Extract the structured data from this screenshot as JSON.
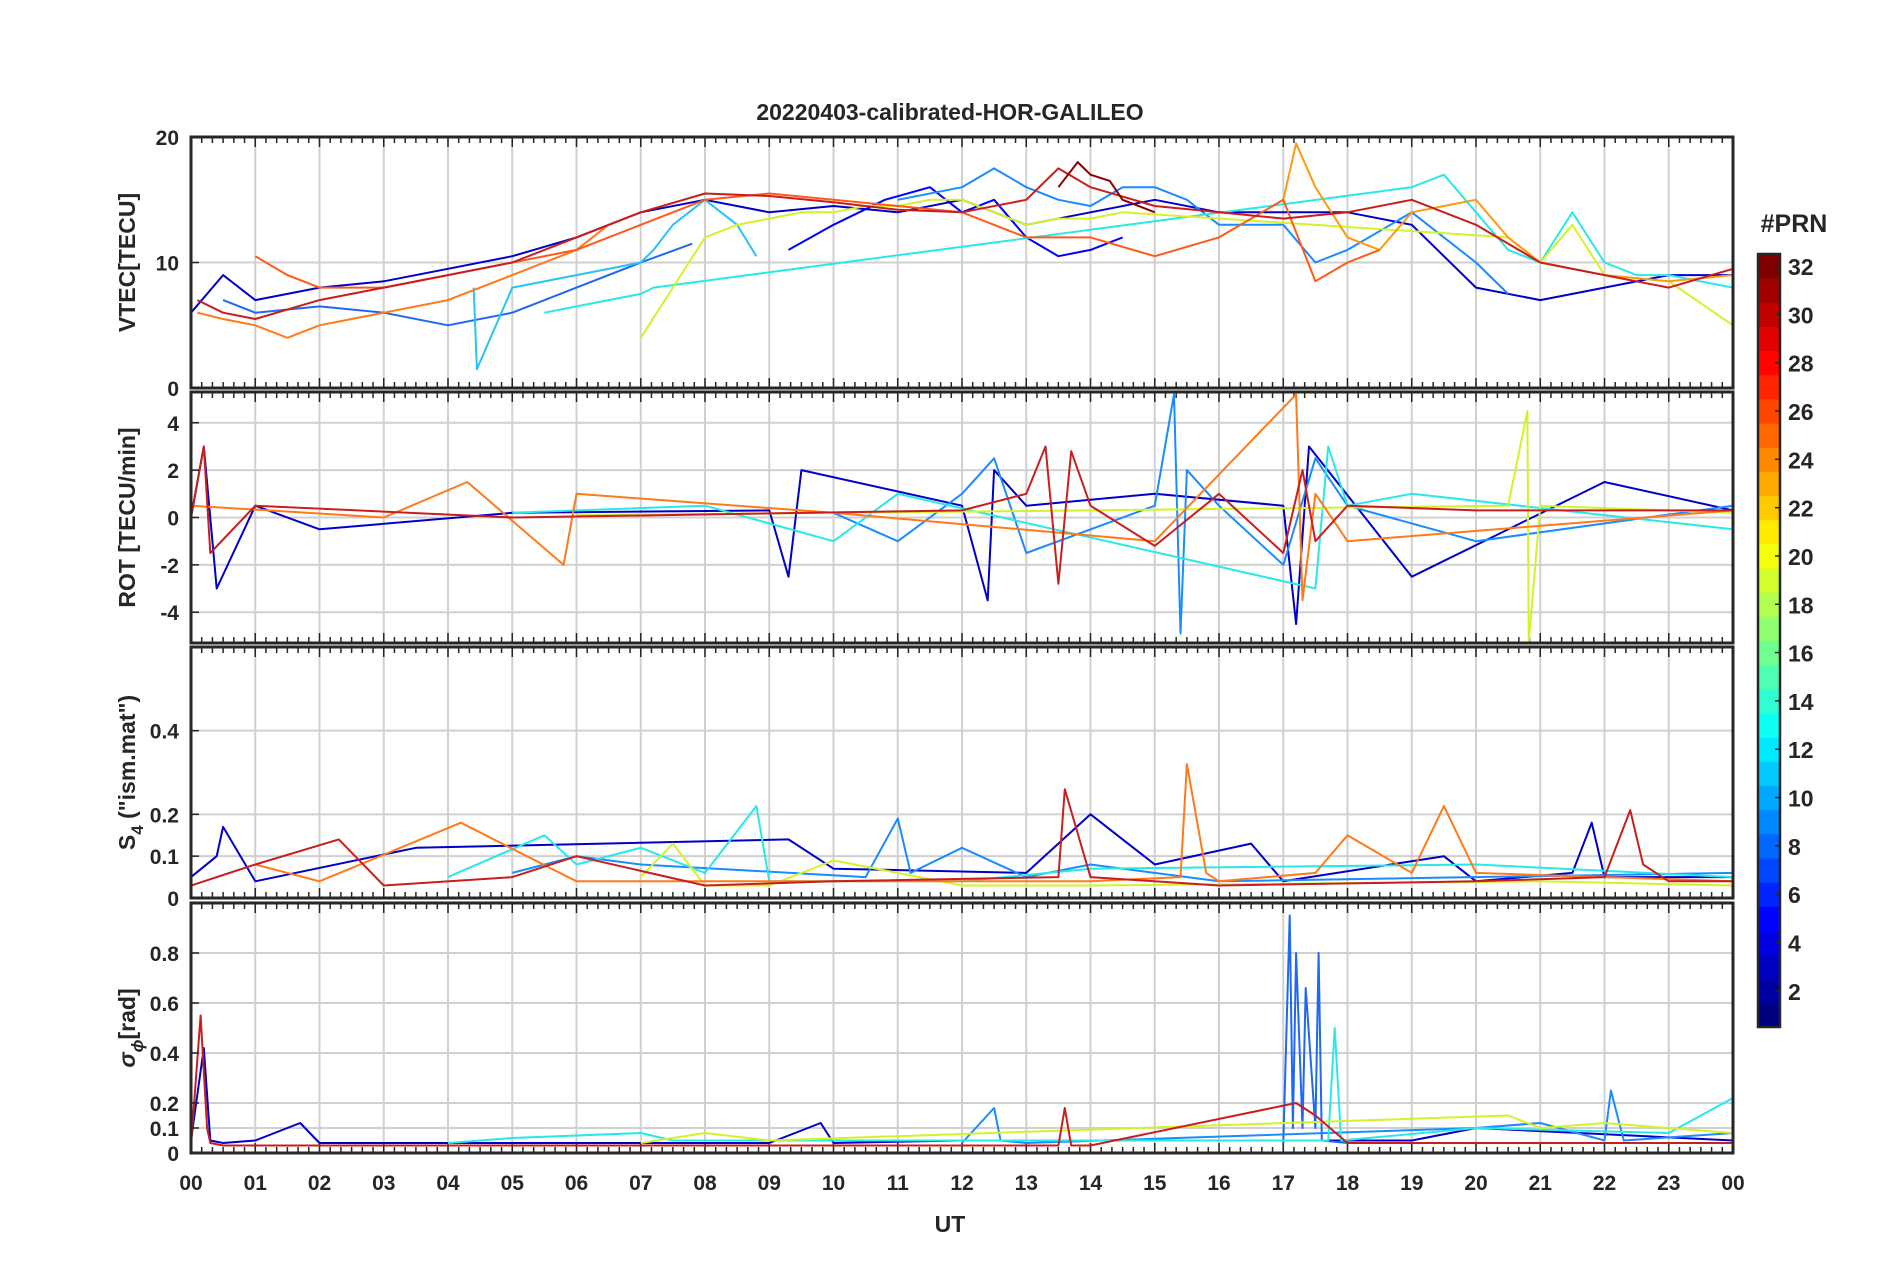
{
  "figure": {
    "title": "20220403-calibrated-HOR-GALILEO",
    "x_label": "UT"
  },
  "colorbar": {
    "title": "#PRN",
    "min": 1,
    "max": 32,
    "ticks": [
      2,
      4,
      6,
      8,
      10,
      12,
      14,
      16,
      18,
      20,
      22,
      24,
      26,
      28,
      30,
      32
    ],
    "colormap": "jet"
  },
  "chart_data": [
    {
      "type": "line",
      "panel": "vtec",
      "ylabel": "VTEC[TECU]",
      "ylim": [
        0,
        20
      ],
      "yticks": [
        0,
        10,
        20
      ],
      "x_unit": "UT hours",
      "xlim": [
        0,
        24
      ],
      "grid": true,
      "series": [
        {
          "prn": 2,
          "color": "#0000c8",
          "x": [
            0,
            0.5,
            1,
            2,
            3,
            4,
            5,
            6,
            7,
            8,
            9,
            10,
            11,
            12,
            13,
            14,
            15,
            16,
            17,
            18,
            19,
            20,
            21,
            22,
            23,
            24
          ],
          "values": [
            6,
            9,
            7,
            8,
            8.5,
            9.5,
            10.5,
            12,
            14,
            15,
            14,
            14.5,
            14,
            15,
            13,
            14,
            15,
            14,
            14,
            14,
            13,
            8,
            7,
            8,
            9,
            9
          ]
        },
        {
          "prn": 4,
          "color": "#0000ff",
          "x": [
            9.3,
            10,
            10.8,
            11.5,
            12,
            12.5,
            13,
            13.5,
            14,
            14.5
          ],
          "values": [
            11,
            13,
            15,
            16,
            14,
            15,
            12,
            10.5,
            11,
            12
          ]
        },
        {
          "prn": 7,
          "color": "#1f68f5",
          "x": [
            0.5,
            1,
            2,
            3,
            4,
            5,
            6,
            7,
            7.8
          ],
          "values": [
            7,
            6,
            6.5,
            6,
            5,
            6,
            8,
            10,
            11.5
          ]
        },
        {
          "prn": 9,
          "color": "#1a8cff",
          "x": [
            11,
            12,
            12.5,
            13,
            13.5,
            14,
            14.5,
            15,
            15.5,
            16,
            17,
            17.5,
            18,
            19,
            20,
            20.5
          ],
          "values": [
            15,
            16,
            17.5,
            16,
            15,
            14.5,
            16,
            16,
            15,
            13,
            13,
            10,
            11,
            14,
            10,
            7.5
          ]
        },
        {
          "prn": 11,
          "color": "#27c4f5",
          "x": [
            4.4,
            4.45,
            5,
            6,
            7,
            7.2,
            7.5,
            8,
            8.5,
            8.8
          ],
          "values": [
            8,
            1.5,
            8,
            9,
            10,
            11,
            13,
            15,
            13,
            10.5
          ]
        },
        {
          "prn": 13,
          "color": "#29e8e8",
          "x": [
            5.5,
            6,
            6.5,
            7,
            7.2,
            19,
            19.5,
            20,
            20.5,
            21,
            21.5,
            22,
            22.5,
            23,
            24
          ],
          "values": [
            6,
            6.5,
            7,
            7.5,
            8,
            16,
            17,
            14,
            11,
            10,
            14,
            10,
            9,
            9,
            8
          ]
        },
        {
          "prn": 19,
          "color": "#d4f22a",
          "x": [
            7,
            7.5,
            8,
            8.5,
            9,
            9.5,
            10,
            10.5,
            11,
            11.5,
            12,
            12.5,
            13,
            13.5,
            14,
            14.5,
            20.5,
            21,
            21.5,
            22,
            23,
            24
          ],
          "values": [
            4,
            8,
            12,
            13,
            13.5,
            14,
            14,
            14.5,
            14.5,
            15,
            15,
            14,
            13,
            13.5,
            13.5,
            14,
            12,
            10,
            13,
            9,
            8.5,
            5
          ]
        },
        {
          "prn": 22,
          "color": "#ff9912",
          "x": [
            17,
            17.2,
            17.5,
            18,
            18.5,
            19,
            19.5,
            20,
            20.5,
            21,
            22,
            23,
            24
          ],
          "values": [
            15,
            19.5,
            16,
            12,
            11,
            14,
            14.5,
            15,
            12,
            10,
            9,
            8.5,
            9
          ]
        },
        {
          "prn": 24,
          "color": "#ff7a1a",
          "x": [
            0.1,
            0.5,
            1,
            1.5,
            2,
            3,
            4,
            5,
            6,
            6.5,
            7
          ],
          "values": [
            6,
            5.5,
            5,
            4,
            5,
            6,
            7,
            9,
            11,
            13,
            14
          ]
        },
        {
          "prn": 26,
          "color": "#ff5a1a",
          "x": [
            1,
            1.5,
            2,
            3,
            4,
            5,
            6,
            7,
            8,
            9,
            10,
            11,
            12,
            13,
            14,
            15,
            16,
            17,
            17.5,
            18,
            18.5
          ],
          "values": [
            10.5,
            9,
            8,
            8,
            9,
            10,
            11,
            13,
            15,
            15.5,
            15,
            14.5,
            14,
            12,
            12,
            10.5,
            12,
            15,
            8.5,
            10,
            11
          ]
        },
        {
          "prn": 30,
          "color": "#c81e1e",
          "x": [
            0.1,
            0.5,
            1,
            2,
            3,
            4,
            5,
            6,
            7,
            8,
            9,
            10,
            11,
            12,
            13,
            13.5,
            14,
            15,
            16,
            17,
            18,
            19,
            20,
            21,
            22,
            23,
            24
          ],
          "values": [
            7,
            6,
            5.5,
            7,
            8,
            9,
            10,
            12,
            14,
            15.5,
            15.3,
            14.8,
            14.2,
            14,
            15,
            17.5,
            16,
            14.5,
            14,
            13.5,
            14,
            15,
            13,
            10,
            9,
            8,
            9.5
          ]
        },
        {
          "prn": 32,
          "color": "#8b0000",
          "x": [
            13.5,
            13.8,
            14,
            14.3,
            14.5,
            15
          ],
          "values": [
            16,
            18,
            17,
            16.5,
            15,
            14
          ]
        }
      ]
    },
    {
      "type": "line",
      "panel": "rot",
      "ylabel": "ROT [TECU/min]",
      "ylim": [
        -5.3,
        5.3
      ],
      "yticks": [
        -4,
        -2,
        0,
        2,
        4
      ],
      "x_unit": "UT hours",
      "xlim": [
        0,
        24
      ],
      "grid": true,
      "series": [
        {
          "prn": 2,
          "color": "#0000c8",
          "x": [
            0,
            0.2,
            0.4,
            1,
            2,
            5,
            9,
            9.3,
            9.5,
            12,
            12.4,
            12.5,
            13,
            15,
            17,
            17.2,
            17.4,
            19,
            22,
            24
          ],
          "values": [
            0,
            3,
            -3,
            0.5,
            -0.5,
            0.2,
            0.3,
            -2.5,
            2,
            0.5,
            -3.5,
            2,
            0.5,
            1,
            0.5,
            -4.5,
            3,
            -2.5,
            1.5,
            0.3
          ]
        },
        {
          "prn": 9,
          "color": "#1a8cff",
          "x": [
            10,
            11,
            12,
            12.5,
            13,
            15,
            15.3,
            15.4,
            15.5,
            16,
            17,
            17.5,
            18,
            20,
            24
          ],
          "values": [
            0.2,
            -1,
            1,
            2.5,
            -1.5,
            0.5,
            5.2,
            -4.9,
            2,
            0.5,
            -2,
            2.5,
            0.5,
            -1,
            0.5
          ]
        },
        {
          "prn": 13,
          "color": "#29e8e8",
          "x": [
            5,
            8,
            10,
            11,
            17.5,
            17.7,
            18,
            19,
            24
          ],
          "values": [
            0.2,
            0.5,
            -1,
            1,
            -3,
            3,
            0.5,
            1,
            -0.5
          ]
        },
        {
          "prn": 19,
          "color": "#d4f22a",
          "x": [
            6,
            10,
            14,
            20.5,
            20.8,
            20.82,
            21,
            24
          ],
          "values": [
            0.1,
            0.2,
            0.3,
            0.5,
            4.5,
            -5.3,
            0.5,
            0.2
          ]
        },
        {
          "prn": 24,
          "color": "#ff7a1a",
          "x": [
            0,
            3,
            4.3,
            5.8,
            6,
            10,
            15,
            17.2,
            17.3,
            17.5,
            18,
            24
          ],
          "values": [
            0.5,
            0,
            1.5,
            -2,
            1,
            0.2,
            -1,
            5.2,
            -3.5,
            1,
            -1,
            0.3
          ]
        },
        {
          "prn": 30,
          "color": "#c81e1e",
          "x": [
            0,
            0.2,
            0.3,
            1,
            5,
            12,
            13,
            13.3,
            13.5,
            13.7,
            14,
            15,
            16,
            17,
            17.3,
            17.5,
            18,
            20,
            24
          ],
          "values": [
            0,
            3,
            -1.5,
            0.5,
            0,
            0.3,
            1,
            3,
            -2.8,
            2.8,
            0.5,
            -1.2,
            1,
            -1.5,
            2,
            -1,
            0.5,
            0.3,
            0.3
          ]
        }
      ]
    },
    {
      "type": "line",
      "panel": "s4",
      "ylabel": "S",
      "ylabel_subscript": "4",
      "ylabel_suffix": " (\"ism.mat\")",
      "ylim": [
        0,
        0.6
      ],
      "yticks": [
        0,
        0.1,
        0.2,
        0.4
      ],
      "x_unit": "UT hours",
      "xlim": [
        0,
        24
      ],
      "grid": true,
      "series": [
        {
          "prn": 2,
          "color": "#0000c8",
          "x": [
            0,
            0.4,
            0.5,
            1,
            3.5,
            9.3,
            10,
            13,
            14,
            15,
            16.5,
            17,
            19.5,
            20,
            21.5,
            21.8,
            22,
            24
          ],
          "values": [
            0.05,
            0.1,
            0.17,
            0.04,
            0.12,
            0.14,
            0.07,
            0.06,
            0.2,
            0.08,
            0.13,
            0.04,
            0.1,
            0.04,
            0.06,
            0.18,
            0.05,
            0.05
          ]
        },
        {
          "prn": 9,
          "color": "#1a8cff",
          "x": [
            5,
            6,
            7,
            10.5,
            11,
            11.2,
            12,
            13,
            14,
            15,
            16,
            24
          ],
          "values": [
            0.06,
            0.1,
            0.08,
            0.05,
            0.19,
            0.06,
            0.12,
            0.05,
            0.08,
            0.06,
            0.04,
            0.06
          ]
        },
        {
          "prn": 13,
          "color": "#29e8e8",
          "x": [
            4,
            5.5,
            6,
            7,
            8,
            8.8,
            9,
            12,
            14,
            20,
            24
          ],
          "values": [
            0.05,
            0.15,
            0.08,
            0.12,
            0.06,
            0.22,
            0.04,
            0.04,
            0.07,
            0.08,
            0.05
          ]
        },
        {
          "prn": 19,
          "color": "#d4f22a",
          "x": [
            7,
            7.5,
            8,
            9,
            10,
            12,
            14,
            21,
            24
          ],
          "values": [
            0.05,
            0.13,
            0.03,
            0.03,
            0.09,
            0.03,
            0.03,
            0.04,
            0.03
          ]
        },
        {
          "prn": 24,
          "color": "#ff7a1a",
          "x": [
            1,
            2,
            4.2,
            6,
            14,
            15.4,
            15.5,
            15.8,
            16,
            17.5,
            18,
            19,
            19.5,
            20,
            24
          ],
          "values": [
            0.08,
            0.04,
            0.18,
            0.04,
            0.04,
            0.05,
            0.32,
            0.06,
            0.04,
            0.06,
            0.15,
            0.06,
            0.22,
            0.06,
            0.04
          ]
        },
        {
          "prn": 30,
          "color": "#c81e1e",
          "x": [
            0,
            1,
            2.3,
            3,
            5,
            6,
            8,
            10,
            13.5,
            13.6,
            14,
            16,
            20,
            22,
            22.4,
            22.6,
            23,
            24
          ],
          "values": [
            0.03,
            0.08,
            0.14,
            0.03,
            0.05,
            0.1,
            0.03,
            0.04,
            0.05,
            0.26,
            0.05,
            0.03,
            0.04,
            0.05,
            0.21,
            0.08,
            0.04,
            0.04
          ]
        }
      ]
    },
    {
      "type": "line",
      "panel": "sigma_phi",
      "ylabel": "σ",
      "ylabel_subscript": "ϕ",
      "ylabel_suffix": "[rad]",
      "ylim": [
        0,
        1.0
      ],
      "yticks": [
        0,
        0.1,
        0.2,
        0.4,
        0.6,
        0.8
      ],
      "x_unit": "UT hours",
      "xlim": [
        0,
        24
      ],
      "grid": true,
      "series": [
        {
          "prn": 2,
          "color": "#0000c8",
          "x": [
            0,
            0.2,
            0.3,
            0.5,
            1,
            1.7,
            2,
            9,
            9.8,
            10,
            12,
            19,
            20,
            24
          ],
          "values": [
            0.05,
            0.42,
            0.05,
            0.04,
            0.05,
            0.12,
            0.04,
            0.04,
            0.12,
            0.04,
            0.05,
            0.05,
            0.1,
            0.05
          ]
        },
        {
          "prn": 7,
          "color": "#1f68f5",
          "x": [
            17,
            17.1,
            17.15,
            17.2,
            17.3,
            17.35,
            17.5,
            17.55,
            17.6,
            18,
            24
          ],
          "values": [
            0.04,
            0.95,
            0.1,
            0.8,
            0.1,
            0.66,
            0.1,
            0.8,
            0.05,
            0.04,
            0.04
          ]
        },
        {
          "prn": 9,
          "color": "#1a8cff",
          "x": [
            12,
            12.5,
            12.6,
            13,
            20,
            21,
            22,
            22.1,
            22.3,
            24
          ],
          "values": [
            0.04,
            0.18,
            0.05,
            0.04,
            0.1,
            0.12,
            0.05,
            0.25,
            0.05,
            0.08
          ]
        },
        {
          "prn": 13,
          "color": "#29e8e8",
          "x": [
            4,
            5,
            7,
            7.5,
            17.7,
            17.8,
            17.9,
            20,
            23,
            24
          ],
          "values": [
            0.04,
            0.06,
            0.08,
            0.05,
            0.05,
            0.5,
            0.05,
            0.1,
            0.08,
            0.22
          ]
        },
        {
          "prn": 19,
          "color": "#d4f22a",
          "x": [
            7,
            8,
            9,
            20.5,
            21,
            22,
            24
          ],
          "values": [
            0.04,
            0.08,
            0.05,
            0.15,
            0.1,
            0.12,
            0.08
          ]
        },
        {
          "prn": 30,
          "color": "#c81e1e",
          "x": [
            0,
            0.15,
            0.25,
            0.3,
            0.5,
            13.5,
            13.6,
            13.7,
            14,
            17.2,
            17.5,
            18,
            24
          ],
          "values": [
            0.03,
            0.55,
            0.1,
            0.04,
            0.03,
            0.03,
            0.18,
            0.03,
            0.03,
            0.2,
            0.15,
            0.04,
            0.04
          ]
        }
      ]
    }
  ],
  "x_ticks": [
    "00",
    "01",
    "02",
    "03",
    "04",
    "05",
    "06",
    "07",
    "08",
    "09",
    "10",
    "11",
    "12",
    "13",
    "14",
    "15",
    "16",
    "17",
    "18",
    "19",
    "20",
    "21",
    "22",
    "23",
    "00"
  ]
}
